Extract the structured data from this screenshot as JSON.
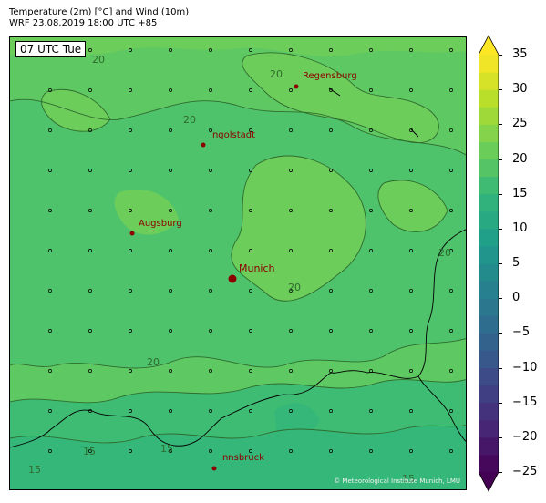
{
  "title": {
    "line1": "Temperature (2m) [°C] and Wind (10m)",
    "line2": "WRF 23.08.2019 18:00 UTC +85"
  },
  "map": {
    "time_badge": "07 UTC Tue",
    "copyright": "© Meteorological Institute Munich, LMU",
    "cities": [
      {
        "name": "Regensburg",
        "marker": "small"
      },
      {
        "name": "Ingolstadt",
        "marker": "small"
      },
      {
        "name": "Augsburg",
        "marker": "small"
      },
      {
        "name": "Munich",
        "marker": "large"
      },
      {
        "name": "Innsbruck",
        "marker": "small"
      }
    ],
    "contour_labels": [
      "20",
      "20",
      "20",
      "20",
      "20",
      "15",
      "15",
      "15",
      "15",
      "20"
    ],
    "colors": {
      "t15_17": "#3fbc73",
      "t17_20": "#4ec36b",
      "t20_22": "#5ec962",
      "t22_25": "#6ccd5a",
      "border": "#000000",
      "city": "#8b0000",
      "contour": "#2f6b2f"
    }
  },
  "colorbar": {
    "min": -25,
    "max": 35,
    "step": 2.5,
    "ticks": [
      "35",
      "30",
      "25",
      "20",
      "15",
      "10",
      "5",
      "0",
      "−5",
      "−10",
      "−15",
      "−20",
      "−25"
    ],
    "extend": "both",
    "colormap": "viridis"
  }
}
